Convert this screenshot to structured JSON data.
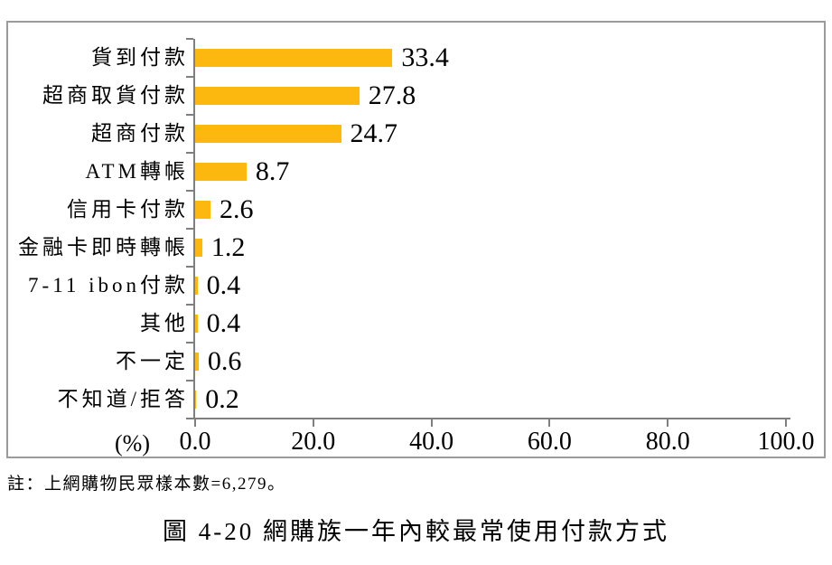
{
  "chart_data": {
    "type": "bar",
    "orientation": "horizontal",
    "title": "圖 4-20 網購族一年內較最常使用付款方式",
    "note": "註：上網購物民眾樣本數=6,279。",
    "unit_label": "(%)",
    "categories": [
      "貨到付款",
      "超商取貨付款",
      "超商付款",
      "ATM轉帳",
      "信用卡付款",
      "金融卡即時轉帳",
      "7-11 ibon付款",
      "其他",
      "不一定",
      "不知道/拒答"
    ],
    "values": [
      33.4,
      27.8,
      24.7,
      8.7,
      2.6,
      1.2,
      0.4,
      0.4,
      0.6,
      0.2
    ],
    "value_labels": [
      "33.4",
      "27.8",
      "24.7",
      "8.7",
      "2.6",
      "1.2",
      "0.4",
      "0.4",
      "0.6",
      "0.2"
    ],
    "x_ticks": [
      {
        "value": 0,
        "label": "0.0"
      },
      {
        "value": 20,
        "label": "20.0"
      },
      {
        "value": 40,
        "label": "40.0"
      },
      {
        "value": 60,
        "label": "60.0"
      },
      {
        "value": 80,
        "label": "80.0"
      },
      {
        "value": 100,
        "label": "100.0"
      }
    ],
    "xlim": [
      0,
      100
    ],
    "grid": "off",
    "legend": "none",
    "bar_color": "#FCB80E",
    "axis_color": "#7F7F7F",
    "frame_border_color": "#9B9B9B",
    "text_color": "#000000"
  }
}
